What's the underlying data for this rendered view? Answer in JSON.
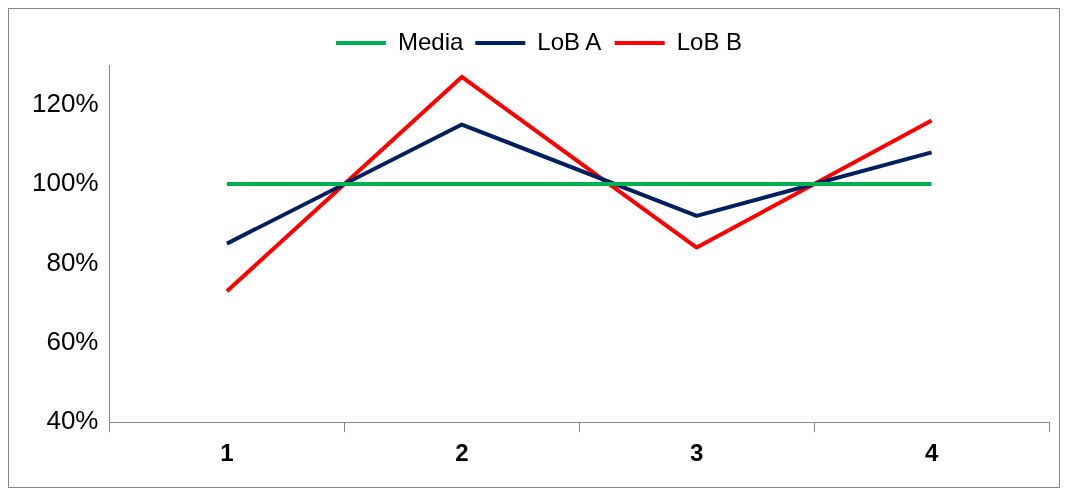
{
  "chart_data": {
    "type": "line",
    "categories": [
      "1",
      "2",
      "3",
      "4"
    ],
    "series": [
      {
        "name": "Media",
        "color": "#00b050",
        "values": [
          100,
          100,
          100,
          100
        ]
      },
      {
        "name": "LoB A",
        "color": "#002060",
        "values": [
          85,
          115,
          92,
          108
        ]
      },
      {
        "name": "LoB B",
        "color": "#ff0000",
        "values": [
          73,
          127,
          84,
          116
        ]
      }
    ],
    "ylim": [
      40,
      130
    ],
    "yticks": [
      {
        "value": 40,
        "label": "40%"
      },
      {
        "value": 60,
        "label": "60%"
      },
      {
        "value": 80,
        "label": "80%"
      },
      {
        "value": 100,
        "label": "100%"
      },
      {
        "value": 120,
        "label": "120%"
      }
    ],
    "legend": "top",
    "marker": "none",
    "line_style": "solid"
  }
}
